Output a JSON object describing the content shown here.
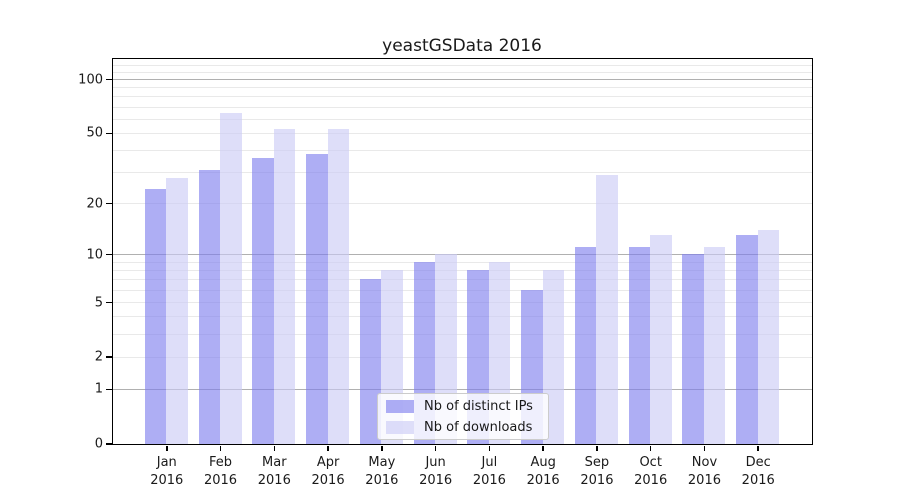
{
  "chart_data": {
    "type": "bar",
    "title": "yeastGSData 2016",
    "categories": [
      "Jan",
      "Feb",
      "Mar",
      "Apr",
      "May",
      "Jun",
      "Jul",
      "Aug",
      "Sep",
      "Oct",
      "Nov",
      "Dec"
    ],
    "category_year": "2016",
    "series": [
      {
        "name": "Nb of distinct IPs",
        "color": "#7c7cee",
        "values": [
          24,
          31,
          36,
          38,
          7,
          9,
          8,
          6,
          11,
          11,
          10,
          13
        ]
      },
      {
        "name": "Nb of downloads",
        "color": "#c9c9f6",
        "values": [
          28,
          65,
          53,
          53,
          8,
          10,
          9,
          8,
          29,
          13,
          11,
          14
        ]
      }
    ],
    "yticks": [
      0,
      1,
      2,
      5,
      10,
      20,
      50,
      100
    ],
    "ylim": [
      0,
      130
    ],
    "scale": "log10(x+1)",
    "grid": {
      "major": [
        1,
        10,
        100
      ],
      "minor": [
        2,
        3,
        4,
        5,
        6,
        7,
        8,
        9,
        20,
        30,
        40,
        50,
        60,
        70,
        80,
        90,
        110,
        120
      ]
    },
    "legend_position": "inside-bottom-center",
    "colors": {
      "major_grid": "#b0b0b0",
      "minor_grid": "#e9e9e9",
      "spine": "#000000"
    }
  }
}
